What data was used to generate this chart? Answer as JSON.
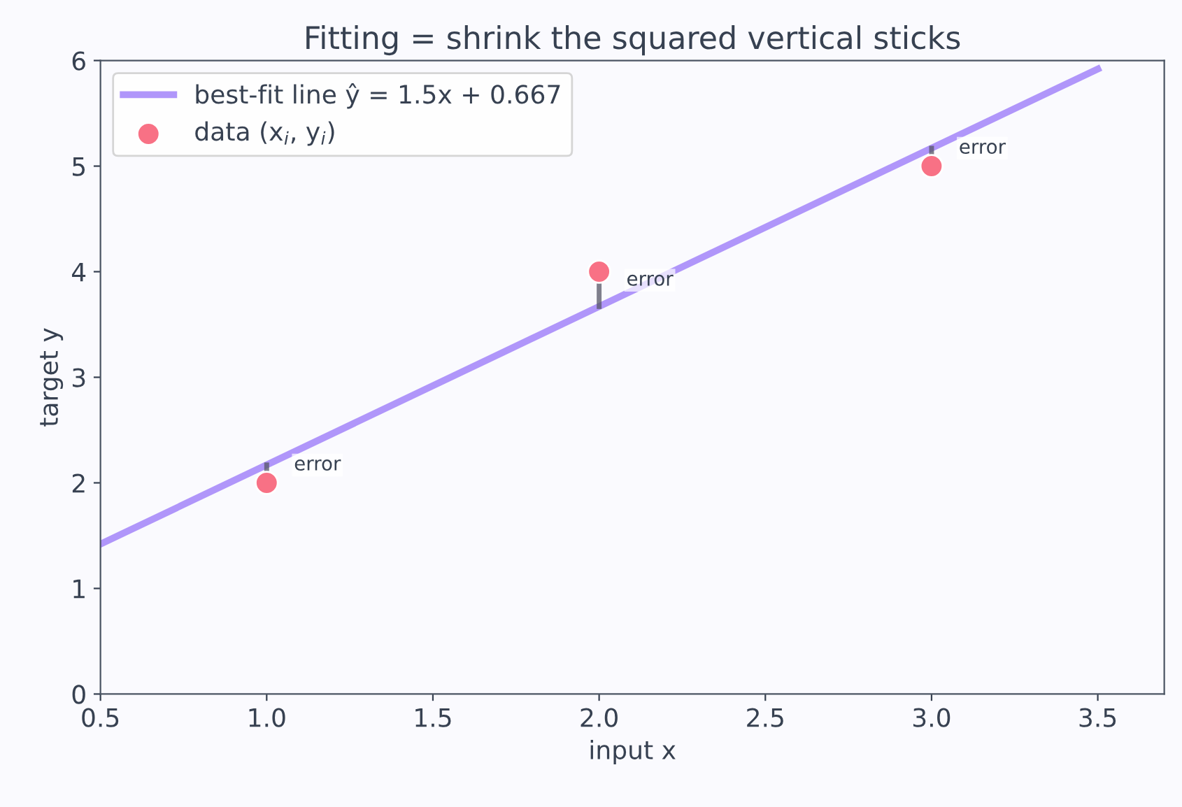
{
  "chart_data": {
    "type": "scatter",
    "title": "Fitting = shrink the squared vertical sticks",
    "xlabel": "input x",
    "ylabel": "target y",
    "xlim": [
      0.5,
      3.7
    ],
    "ylim": [
      0,
      6
    ],
    "xticks": [
      {
        "value": 0.5,
        "label": "0.5"
      },
      {
        "value": 1,
        "label": "1.0"
      },
      {
        "value": 1.5,
        "label": "1.5"
      },
      {
        "value": 2,
        "label": "2.0"
      },
      {
        "value": 2.5,
        "label": "2.5"
      },
      {
        "value": 3,
        "label": "3.0"
      },
      {
        "value": 3.5,
        "label": "3.5"
      }
    ],
    "yticks": [
      0,
      1,
      2,
      3,
      4,
      5,
      6
    ],
    "grid": false,
    "legend": "top left",
    "series": [
      {
        "type": "line",
        "name": "best-fit line ŷ = 1.5x + 0.667",
        "color": "#a78bfa",
        "x": [
          0.5,
          3.5
        ],
        "values": [
          1.42,
          5.92
        ],
        "marker": "none"
      },
      {
        "type": "line",
        "color": "#555566",
        "x": [
          1,
          1
        ],
        "values": [
          2,
          2.17
        ],
        "marker": "none"
      },
      {
        "type": "line",
        "color": "#555566",
        "x": [
          2,
          2
        ],
        "values": [
          4,
          3.67
        ],
        "marker": "none"
      },
      {
        "type": "line",
        "color": "#555566",
        "x": [
          3,
          3
        ],
        "values": [
          5,
          5.17
        ],
        "marker": "none"
      },
      {
        "name": "data (x$_{i}$, y$_{i}$)",
        "color": "#f87185",
        "x": [
          1,
          2,
          3
        ],
        "values": [
          2,
          4,
          5
        ],
        "marker": "circle"
      }
    ],
    "annotations": [
      {
        "text": "error",
        "x": 1,
        "y": 2.08
      },
      {
        "text": "error",
        "x": 2,
        "y": 3.83
      },
      {
        "text": "error",
        "x": 3,
        "y": 5.08
      }
    ]
  }
}
